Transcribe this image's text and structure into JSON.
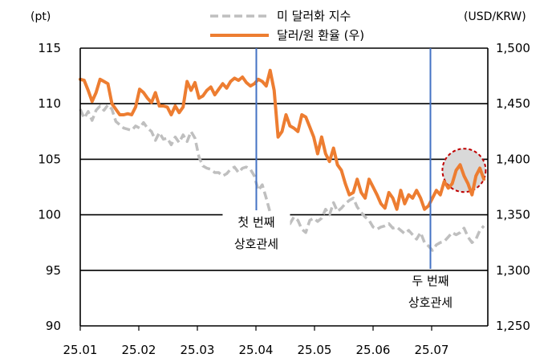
{
  "chart_data": {
    "type": "line",
    "left_axis_unit": "(pt)",
    "right_axis_unit": "(USD/KRW)",
    "x_ticks": [
      "25.01",
      "25.02",
      "25.03",
      "25.04",
      "25.05",
      "25.06",
      "25.07"
    ],
    "y_left": {
      "min": 90,
      "max": 115,
      "ticks": [
        "90",
        "95",
        "100",
        "105",
        "110",
        "115"
      ]
    },
    "y_right": {
      "min": 1250,
      "max": 1500,
      "ticks": [
        "1,250",
        "1,300",
        "1,350",
        "1,400",
        "1,450",
        "1,500"
      ]
    },
    "grid": "horizontal",
    "legend_position": "top",
    "series": [
      {
        "name": "미 달러화 지수",
        "axis": "left",
        "color": "#bfbfbf",
        "style": "dashed",
        "values": [
          [
            0,
            109.5
          ],
          [
            1,
            108.7
          ],
          [
            2,
            109.3
          ],
          [
            3,
            108.5
          ],
          [
            4,
            109.4
          ],
          [
            5,
            109.8
          ],
          [
            6,
            109.4
          ],
          [
            7,
            109.9
          ],
          [
            8,
            109.5
          ],
          [
            9,
            108.4
          ],
          [
            10,
            108.1
          ],
          [
            11,
            107.8
          ],
          [
            12,
            107.7
          ],
          [
            13,
            107.6
          ],
          [
            14,
            108.0
          ],
          [
            15,
            107.8
          ],
          [
            16,
            108.3
          ],
          [
            17,
            107.8
          ],
          [
            18,
            107.5
          ],
          [
            19,
            106.7
          ],
          [
            20,
            107.4
          ],
          [
            21,
            106.8
          ],
          [
            22,
            106.9
          ],
          [
            23,
            106.3
          ],
          [
            24,
            107.0
          ],
          [
            25,
            106.5
          ],
          [
            26,
            107.2
          ],
          [
            27,
            106.6
          ],
          [
            28,
            107.5
          ],
          [
            29,
            106.9
          ],
          [
            30,
            105.2
          ],
          [
            31,
            104.4
          ],
          [
            32,
            104.2
          ],
          [
            33,
            104.1
          ],
          [
            34,
            103.8
          ],
          [
            35,
            103.8
          ],
          [
            36,
            103.5
          ],
          [
            37,
            103.7
          ],
          [
            38,
            104.1
          ],
          [
            39,
            104.3
          ],
          [
            40,
            103.8
          ],
          [
            41,
            104.2
          ],
          [
            42,
            104.3
          ],
          [
            43,
            104.1
          ],
          [
            44,
            103.5
          ],
          [
            45,
            102.2
          ],
          [
            46,
            102.7
          ],
          [
            47,
            101.5
          ],
          [
            48,
            100.2
          ],
          [
            49,
            99.7
          ],
          [
            50,
            100.0
          ],
          [
            51,
            99.7
          ],
          [
            52,
            99.4
          ],
          [
            53,
            99.2
          ],
          [
            54,
            99.8
          ],
          [
            55,
            99.5
          ],
          [
            56,
            98.7
          ],
          [
            57,
            98.4
          ],
          [
            58,
            99.5
          ],
          [
            59,
            99.7
          ],
          [
            60,
            99.4
          ],
          [
            61,
            99.7
          ],
          [
            62,
            100.5
          ],
          [
            63,
            100.0
          ],
          [
            64,
            101.1
          ],
          [
            65,
            100.3
          ],
          [
            66,
            100.6
          ],
          [
            67,
            101.0
          ],
          [
            68,
            101.3
          ],
          [
            69,
            101.5
          ],
          [
            70,
            100.7
          ],
          [
            71,
            100.2
          ],
          [
            72,
            99.8
          ],
          [
            73,
            99.5
          ],
          [
            74,
            98.9
          ],
          [
            75,
            98.7
          ],
          [
            76,
            98.9
          ],
          [
            77,
            99.0
          ],
          [
            78,
            99.2
          ],
          [
            79,
            98.8
          ],
          [
            80,
            98.9
          ],
          [
            81,
            98.6
          ],
          [
            82,
            98.3
          ],
          [
            83,
            98.6
          ],
          [
            84,
            98.2
          ],
          [
            85,
            97.8
          ],
          [
            86,
            98.4
          ],
          [
            87,
            97.5
          ],
          [
            88,
            97.2
          ],
          [
            89,
            96.8
          ],
          [
            90,
            97.3
          ],
          [
            91,
            97.5
          ],
          [
            92,
            97.6
          ],
          [
            93,
            98.0
          ],
          [
            94,
            98.4
          ],
          [
            95,
            98.2
          ],
          [
            96,
            98.4
          ],
          [
            97,
            98.8
          ],
          [
            98,
            98.0
          ],
          [
            99,
            97.5
          ],
          [
            100,
            97.8
          ],
          [
            101,
            98.6
          ],
          [
            102,
            99.0
          ]
        ]
      },
      {
        "name": "달러/원 환율 (우)",
        "axis": "right",
        "color": "#ed7d31",
        "style": "solid",
        "values": [
          [
            0,
            1472
          ],
          [
            1,
            1471
          ],
          [
            2,
            1462
          ],
          [
            3,
            1452
          ],
          [
            4,
            1460
          ],
          [
            5,
            1472
          ],
          [
            6,
            1470
          ],
          [
            7,
            1468
          ],
          [
            8,
            1450
          ],
          [
            9,
            1445
          ],
          [
            10,
            1440
          ],
          [
            11,
            1440
          ],
          [
            12,
            1441
          ],
          [
            13,
            1440
          ],
          [
            14,
            1447
          ],
          [
            15,
            1463
          ],
          [
            16,
            1460
          ],
          [
            17,
            1455
          ],
          [
            18,
            1451
          ],
          [
            19,
            1460
          ],
          [
            20,
            1448
          ],
          [
            21,
            1448
          ],
          [
            22,
            1447
          ],
          [
            23,
            1440
          ],
          [
            24,
            1448
          ],
          [
            25,
            1442
          ],
          [
            26,
            1447
          ],
          [
            27,
            1470
          ],
          [
            28,
            1462
          ],
          [
            29,
            1469
          ],
          [
            30,
            1455
          ],
          [
            31,
            1457
          ],
          [
            32,
            1462
          ],
          [
            33,
            1465
          ],
          [
            34,
            1458
          ],
          [
            35,
            1463
          ],
          [
            36,
            1468
          ],
          [
            37,
            1464
          ],
          [
            38,
            1470
          ],
          [
            39,
            1473
          ],
          [
            40,
            1471
          ],
          [
            41,
            1474
          ],
          [
            42,
            1469
          ],
          [
            43,
            1466
          ],
          [
            44,
            1468
          ],
          [
            45,
            1472
          ],
          [
            46,
            1470
          ],
          [
            47,
            1466
          ],
          [
            48,
            1480
          ],
          [
            49,
            1462
          ],
          [
            50,
            1420
          ],
          [
            51,
            1425
          ],
          [
            52,
            1440
          ],
          [
            53,
            1430
          ],
          [
            54,
            1428
          ],
          [
            55,
            1425
          ],
          [
            56,
            1440
          ],
          [
            57,
            1438
          ],
          [
            58,
            1429
          ],
          [
            59,
            1420
          ],
          [
            60,
            1405
          ],
          [
            61,
            1420
          ],
          [
            62,
            1405
          ],
          [
            63,
            1398
          ],
          [
            64,
            1410
          ],
          [
            65,
            1395
          ],
          [
            66,
            1390
          ],
          [
            67,
            1378
          ],
          [
            68,
            1368
          ],
          [
            69,
            1370
          ],
          [
            70,
            1382
          ],
          [
            71,
            1370
          ],
          [
            72,
            1365
          ],
          [
            73,
            1382
          ],
          [
            74,
            1375
          ],
          [
            75,
            1368
          ],
          [
            76,
            1360
          ],
          [
            77,
            1356
          ],
          [
            78,
            1370
          ],
          [
            79,
            1365
          ],
          [
            80,
            1355
          ],
          [
            81,
            1372
          ],
          [
            82,
            1360
          ],
          [
            83,
            1368
          ],
          [
            84,
            1365
          ],
          [
            85,
            1372
          ],
          [
            86,
            1365
          ],
          [
            87,
            1355
          ],
          [
            88,
            1358
          ],
          [
            89,
            1365
          ],
          [
            90,
            1372
          ],
          [
            91,
            1368
          ],
          [
            92,
            1380
          ],
          [
            93,
            1374
          ],
          [
            94,
            1378
          ],
          [
            95,
            1390
          ],
          [
            96,
            1395
          ],
          [
            97,
            1385
          ],
          [
            98,
            1378
          ],
          [
            99,
            1368
          ],
          [
            100,
            1385
          ],
          [
            101,
            1392
          ],
          [
            102,
            1382
          ]
        ]
      }
    ],
    "annotations": [
      {
        "x": 44.5,
        "label_lines": [
          "첫 번째",
          "상호관세"
        ]
      },
      {
        "x": 88.5,
        "label_lines": [
          "두 번째",
          "상호관세"
        ]
      }
    ],
    "highlight": {
      "x": 97,
      "y_right": 1390
    }
  }
}
